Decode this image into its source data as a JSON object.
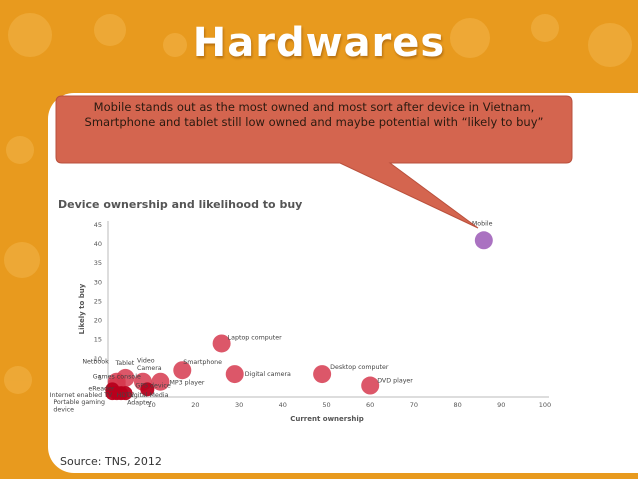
{
  "slide": {
    "title": "Hardwares",
    "callout": "Mobile stands out as the most owned and most sort after device in Vietnam, Smartphone and tablet still low owned and maybe potential with “likely to buy”",
    "source": "Source: TNS, 2012"
  },
  "colors": {
    "background": "#e89a1e",
    "callout_fill": "#d4654f",
    "marker_red": "#d63a4f",
    "marker_dark": "#b8001c",
    "marker_purple": "#9b59b6"
  },
  "chart_data": {
    "type": "scatter",
    "title": "Device ownership and likelihood to buy",
    "xlabel": "Current ownership",
    "ylabel": "Likely to buy",
    "xlim": [
      0,
      100
    ],
    "ylim": [
      0,
      45
    ],
    "x_ticks": [
      10,
      20,
      30,
      40,
      50,
      60,
      70,
      80,
      90,
      100
    ],
    "y_ticks": [
      5,
      10,
      15,
      20,
      25,
      30,
      35,
      40,
      45
    ],
    "grid": false,
    "points": [
      {
        "label": "Mobile",
        "x": 86,
        "y": 41,
        "color": "purple"
      },
      {
        "label": "Laptop computer",
        "x": 26,
        "y": 14,
        "color": "red"
      },
      {
        "label": "Smartphone",
        "x": 17,
        "y": 7,
        "color": "red"
      },
      {
        "label": "Digital camera",
        "x": 29,
        "y": 6,
        "color": "red"
      },
      {
        "label": "Desktop computer",
        "x": 49,
        "y": 6,
        "color": "red"
      },
      {
        "label": "DVD player",
        "x": 60,
        "y": 3,
        "color": "red"
      },
      {
        "label": "MP3 player",
        "x": 12,
        "y": 4,
        "color": "red"
      },
      {
        "label": "Video Camera",
        "x": 8,
        "y": 4,
        "color": "red"
      },
      {
        "label": "Tablet",
        "x": 4,
        "y": 5,
        "color": "red"
      },
      {
        "label": "Netbook",
        "x": 2,
        "y": 4,
        "color": "red"
      },
      {
        "label": "Games console",
        "x": 2,
        "y": 3,
        "color": "red"
      },
      {
        "label": "eReader",
        "x": 1,
        "y": 2,
        "color": "dark"
      },
      {
        "label": "Internet enabled TV",
        "x": 2,
        "y": 1,
        "color": "dark"
      },
      {
        "label": "HDTV",
        "x": 4,
        "y": 1,
        "color": "dark"
      },
      {
        "label": "Portable gaming device",
        "x": 1,
        "y": 1,
        "color": "dark"
      },
      {
        "label": "Digital Media Adapter",
        "x": 3,
        "y": 1,
        "color": "dark"
      },
      {
        "label": "GPS device",
        "x": 9,
        "y": 2,
        "color": "dark"
      }
    ],
    "label_lines": [
      {
        "point": 0,
        "lines": [
          "Mobile"
        ]
      },
      {
        "point": 1,
        "lines": [
          "Laptop computer"
        ]
      },
      {
        "point": 2,
        "lines": [
          "Smartphone"
        ]
      },
      {
        "point": 3,
        "lines": [
          "Digital camera"
        ]
      },
      {
        "point": 4,
        "lines": [
          "Desktop computer"
        ]
      },
      {
        "point": 5,
        "lines": [
          "DVD player"
        ]
      },
      {
        "point": 6,
        "lines": [
          "MP3 player"
        ]
      },
      {
        "point": 7,
        "lines": [
          "Video",
          "Camera"
        ]
      },
      {
        "point": 8,
        "lines": [
          "Tablet"
        ]
      },
      {
        "point": 9,
        "lines": [
          "Netbook"
        ]
      },
      {
        "point": 10,
        "lines": [
          "Games console"
        ]
      },
      {
        "point": 11,
        "lines": [
          "eReader"
        ]
      },
      {
        "point": 12,
        "lines": [
          "Internet enabled TV"
        ]
      },
      {
        "point": 13,
        "lines": [
          "HDTV"
        ]
      },
      {
        "point": 14,
        "lines": [
          "Portable gaming",
          "device"
        ]
      },
      {
        "point": 15,
        "lines": [
          "Digital Media",
          "Adapter"
        ]
      },
      {
        "point": 16,
        "lines": [
          "GPS device"
        ]
      }
    ]
  }
}
